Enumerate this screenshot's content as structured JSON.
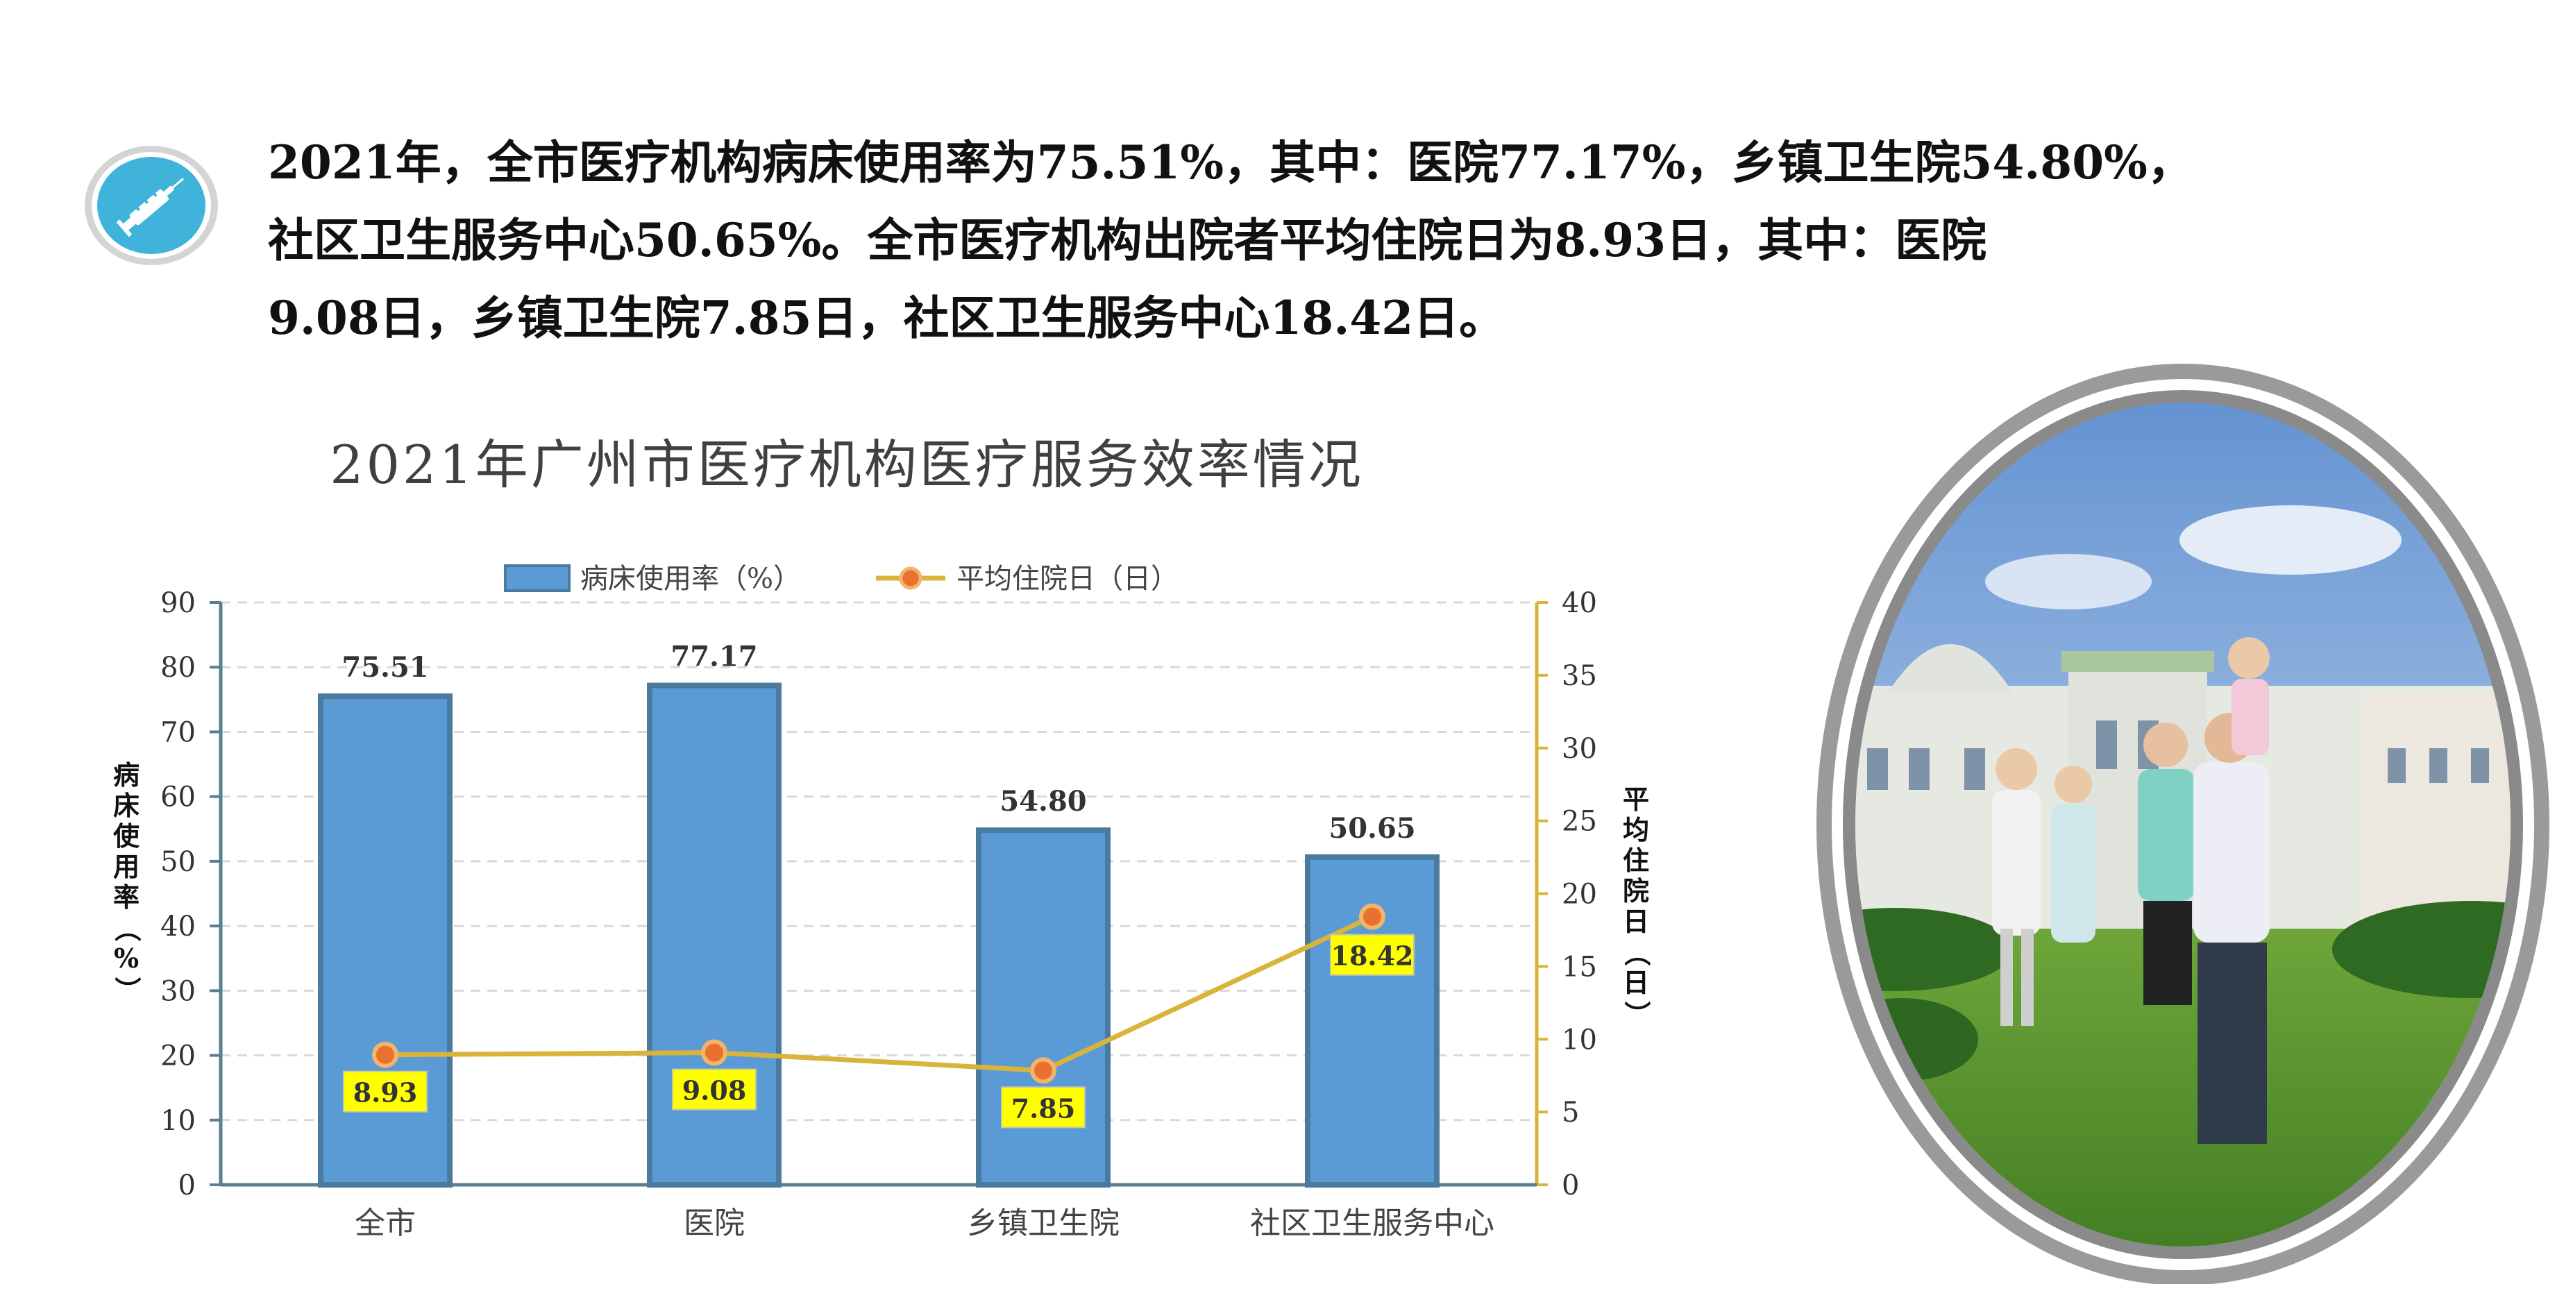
{
  "intro": {
    "line1": "2021年，全市医疗机构病床使用率为75.51%，其中：医院77.17%，乡镇卫生院54.80%，",
    "line2": "社区卫生服务中心50.65%。全市医疗机构出院者平均住院日为8.93日，其中：医院",
    "line3": "9.08日，乡镇卫生院7.85日，社区卫生服务中心18.42日。"
  },
  "badge_icon": "syringe-icon",
  "photo_subject": "hospital-family-photo",
  "chart_data": {
    "type": "bar",
    "title": "2021年广州市医疗机构医疗服务效率情况",
    "categories": [
      "全市",
      "医院",
      "乡镇卫生院",
      "社区卫生服务中心"
    ],
    "series": [
      {
        "name": "病床使用率（%）",
        "type": "bar",
        "axis": "left",
        "values": [
          75.51,
          77.17,
          54.8,
          50.65
        ],
        "labels": [
          "75.51",
          "77.17",
          "54.80",
          "50.65"
        ],
        "color": "#5B9BD5"
      },
      {
        "name": "平均住院日（日）",
        "type": "line",
        "axis": "right",
        "values": [
          8.93,
          9.08,
          7.85,
          18.42
        ],
        "labels": [
          "8.93",
          "9.08",
          "7.85",
          "18.42"
        ],
        "color": "#D9B43A"
      }
    ],
    "y_left": {
      "label": "病床使用率（%）",
      "range": [
        0,
        90
      ],
      "ticks": [
        "0",
        "10",
        "20",
        "30",
        "40",
        "50",
        "60",
        "70",
        "80",
        "90"
      ]
    },
    "y_right": {
      "label": "平均住院日（日）",
      "range": [
        0,
        40
      ],
      "ticks": [
        "0",
        "5",
        "10",
        "15",
        "20",
        "25",
        "30",
        "35",
        "40"
      ]
    },
    "legend_position": "top",
    "grid": "horizontal dashed",
    "colors": {
      "bar_fill": "#5B9BD5",
      "bar_stroke": "#4A7A9E",
      "line": "#D9B43A",
      "marker_fill": "#E8712F",
      "label_box": "#FFFF00",
      "axis": "#5A7F90",
      "right_axis": "#D9B43A"
    }
  }
}
